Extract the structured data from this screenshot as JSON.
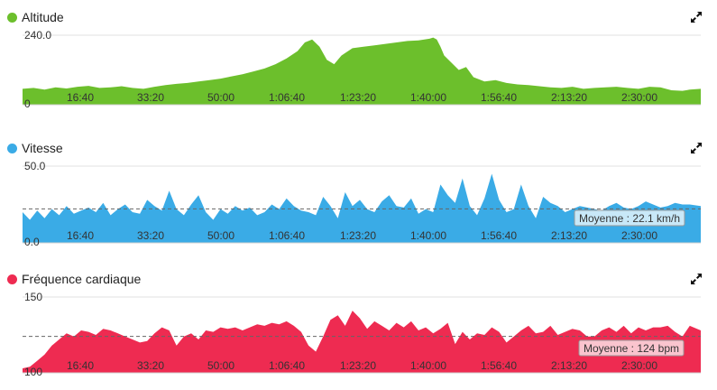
{
  "chart_data": [
    {
      "type": "area",
      "title": "Altitude",
      "color": "#6cbf2c",
      "y_top_label": "240.0",
      "y_bottom_label": "0",
      "ylim": [
        0,
        240
      ],
      "xlim": [
        0,
        9250
      ],
      "x_ticks": [
        "16:40",
        "33:20",
        "50:00",
        "1:06:40",
        "1:23:20",
        "1:40:00",
        "1:56:40",
        "2:13:20",
        "2:30:00"
      ],
      "x": [
        0,
        150,
        300,
        450,
        600,
        750,
        900,
        1050,
        1200,
        1350,
        1500,
        1650,
        1800,
        1950,
        2100,
        2250,
        2400,
        2550,
        2700,
        2850,
        3000,
        3150,
        3300,
        3450,
        3600,
        3750,
        3850,
        3950,
        4050,
        4150,
        4250,
        4350,
        4500,
        4650,
        4800,
        4950,
        5100,
        5250,
        5400,
        5550,
        5600,
        5650,
        5700,
        5750,
        5850,
        5950,
        6050,
        6150,
        6300,
        6450,
        6600,
        6750,
        6900,
        7050,
        7200,
        7350,
        7500,
        7650,
        7800,
        7950,
        8100,
        8250,
        8400,
        8550,
        8700,
        8850,
        9000,
        9100,
        9250
      ],
      "values": [
        55,
        58,
        52,
        60,
        56,
        62,
        65,
        58,
        60,
        64,
        58,
        55,
        62,
        68,
        72,
        75,
        80,
        85,
        90,
        98,
        105,
        115,
        125,
        140,
        160,
        185,
        215,
        225,
        200,
        155,
        140,
        170,
        195,
        200,
        205,
        210,
        215,
        220,
        222,
        228,
        232,
        225,
        200,
        170,
        145,
        120,
        130,
        95,
        80,
        85,
        75,
        70,
        68,
        64,
        60,
        58,
        62,
        55,
        58,
        60,
        62,
        58,
        55,
        62,
        60,
        50,
        48,
        52,
        55
      ],
      "series": [
        {
          "name": "Altitude"
        }
      ]
    },
    {
      "type": "area",
      "title": "Vitesse",
      "color": "#3aabe6",
      "y_top_label": "50.0",
      "y_bottom_label": "0.0",
      "ylim": [
        0,
        50
      ],
      "xlim": [
        0,
        9250
      ],
      "x_ticks": [
        "16:40",
        "33:20",
        "50:00",
        "1:06:40",
        "1:23:20",
        "1:40:00",
        "1:56:40",
        "2:13:20",
        "2:30:00"
      ],
      "average": 22.1,
      "average_label": "Moyenne : 22.1 km/h",
      "x": [
        0,
        100,
        200,
        300,
        400,
        500,
        600,
        700,
        800,
        900,
        1000,
        1100,
        1200,
        1300,
        1400,
        1500,
        1600,
        1700,
        1800,
        1900,
        2000,
        2100,
        2200,
        2300,
        2400,
        2500,
        2600,
        2700,
        2800,
        2900,
        3000,
        3100,
        3200,
        3300,
        3400,
        3500,
        3600,
        3700,
        3800,
        3900,
        4000,
        4100,
        4200,
        4300,
        4400,
        4500,
        4600,
        4700,
        4800,
        4900,
        5000,
        5100,
        5200,
        5300,
        5400,
        5500,
        5600,
        5700,
        5800,
        5900,
        6000,
        6100,
        6200,
        6300,
        6400,
        6500,
        6600,
        6700,
        6800,
        6900,
        7000,
        7100,
        7200,
        7300,
        7400,
        7500,
        7600,
        7700,
        7800,
        7900,
        8000,
        8100,
        8200,
        8300,
        8400,
        8500,
        8600,
        8700,
        8800,
        8900,
        9000,
        9100,
        9250
      ],
      "values": [
        20,
        15,
        21,
        16,
        22,
        18,
        24,
        19,
        21,
        23,
        20,
        26,
        18,
        22,
        25,
        20,
        19,
        28,
        24,
        21,
        34,
        22,
        18,
        25,
        31,
        20,
        15,
        22,
        19,
        24,
        21,
        23,
        18,
        20,
        25,
        22,
        29,
        24,
        21,
        20,
        18,
        30,
        24,
        16,
        33,
        24,
        28,
        22,
        20,
        27,
        31,
        24,
        23,
        29,
        19,
        22,
        20,
        38,
        31,
        26,
        42,
        24,
        18,
        29,
        45,
        28,
        20,
        22,
        38,
        24,
        16,
        30,
        26,
        24,
        20,
        22,
        24,
        23,
        22,
        21,
        24,
        26,
        23,
        22,
        24,
        27,
        25,
        23,
        24,
        26,
        25,
        25,
        24
      ],
      "series": [
        {
          "name": "Vitesse"
        }
      ]
    },
    {
      "type": "area",
      "title": "Fréquence cardiaque",
      "color": "#ee2b51",
      "y_top_label": "150",
      "y_bottom_label": "100",
      "ylim": [
        100,
        150
      ],
      "xlim": [
        0,
        9250
      ],
      "x_ticks": [
        "16:40",
        "33:20",
        "50:00",
        "1:06:40",
        "1:23:20",
        "1:40:00",
        "1:56:40",
        "2:13:20",
        "2:30:00"
      ],
      "average": 124,
      "average_label": "Moyenne : 124 bpm",
      "x": [
        0,
        100,
        200,
        300,
        400,
        500,
        600,
        700,
        800,
        900,
        1000,
        1100,
        1200,
        1300,
        1400,
        1500,
        1600,
        1700,
        1800,
        1900,
        2000,
        2100,
        2200,
        2300,
        2400,
        2500,
        2600,
        2700,
        2800,
        2900,
        3000,
        3100,
        3200,
        3300,
        3400,
        3500,
        3600,
        3700,
        3800,
        3900,
        4000,
        4100,
        4200,
        4300,
        4400,
        4500,
        4600,
        4700,
        4800,
        4900,
        5000,
        5100,
        5200,
        5300,
        5400,
        5500,
        5600,
        5700,
        5800,
        5900,
        6000,
        6100,
        6200,
        6300,
        6400,
        6500,
        6600,
        6700,
        6800,
        6900,
        7000,
        7100,
        7200,
        7300,
        7400,
        7500,
        7600,
        7700,
        7800,
        7900,
        8000,
        8100,
        8200,
        8300,
        8400,
        8500,
        8600,
        8700,
        8800,
        8900,
        9000,
        9100,
        9250
      ],
      "values": [
        103,
        104,
        108,
        112,
        118,
        122,
        126,
        124,
        128,
        127,
        125,
        129,
        128,
        126,
        124,
        122,
        120,
        121,
        126,
        130,
        128,
        118,
        124,
        126,
        122,
        128,
        127,
        130,
        129,
        130,
        128,
        130,
        132,
        131,
        133,
        132,
        134,
        131,
        127,
        118,
        114,
        124,
        135,
        138,
        131,
        141,
        136,
        129,
        134,
        131,
        128,
        133,
        130,
        134,
        128,
        130,
        126,
        129,
        133,
        119,
        127,
        122,
        126,
        125,
        130,
        127,
        120,
        124,
        128,
        131,
        126,
        127,
        131,
        125,
        127,
        129,
        128,
        124,
        124,
        128,
        130,
        127,
        131,
        126,
        130,
        128,
        130,
        130,
        131,
        127,
        124,
        131,
        128
      ],
      "series": [
        {
          "name": "Fréquence cardiaque"
        }
      ]
    }
  ]
}
